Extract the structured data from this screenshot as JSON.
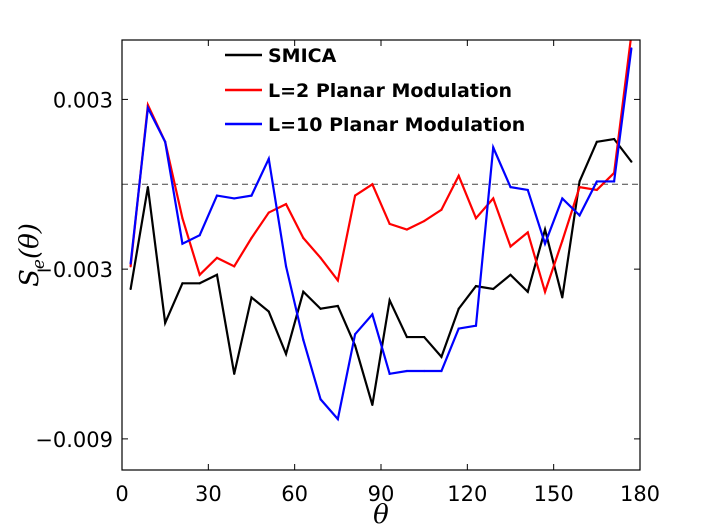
{
  "chart_data": {
    "type": "line",
    "title": "",
    "xlabel": "θ",
    "ylabel": "S_e(θ)",
    "ylabel_main": "S",
    "ylabel_sub": "e",
    "ylabel_arg": "(θ)",
    "xlim": [
      0,
      180
    ],
    "ylim": [
      -0.0101,
      0.0051
    ],
    "xticks": [
      0,
      30,
      60,
      90,
      120,
      150,
      180
    ],
    "xtick_labels": [
      "0",
      "30",
      "60",
      "90",
      "120",
      "150",
      "180"
    ],
    "yticks": [
      0.003,
      -0.003,
      -0.009
    ],
    "ytick_labels": [
      "0.003",
      "−0.003",
      "−0.009"
    ],
    "reference_line": {
      "y": 0.0,
      "style": "dashed",
      "color": "#444444"
    },
    "legend_position": "top-center",
    "x": [
      3,
      9,
      15,
      21,
      27,
      33,
      39,
      45,
      51,
      57,
      63,
      69,
      75,
      81,
      87,
      93,
      99,
      105,
      111,
      117,
      123,
      129,
      135,
      141,
      147,
      153,
      159,
      165,
      171,
      177
    ],
    "series": [
      {
        "name": "SMICA",
        "color": "#000000",
        "values": [
          -0.0037,
          -0.0001,
          -0.0049,
          -0.0035,
          -0.0035,
          -0.0032,
          -0.0067,
          -0.004,
          -0.0045,
          -0.006,
          -0.0038,
          -0.0044,
          -0.0043,
          -0.0057,
          -0.0078,
          -0.0041,
          -0.0054,
          -0.0054,
          -0.0061,
          -0.0044,
          -0.0036,
          -0.0037,
          -0.0032,
          -0.0038,
          -0.0016,
          -0.004,
          0.0001,
          0.0015,
          0.0016,
          0.0008
        ]
      },
      {
        "name": "L=2 Planar Modulation",
        "color": "#ff0000",
        "values": [
          -0.0029,
          0.0028,
          0.0015,
          -0.0012,
          -0.0032,
          -0.0026,
          -0.0029,
          -0.0019,
          -0.001,
          -0.0007,
          -0.0019,
          -0.0026,
          -0.0034,
          -0.0004,
          0.0,
          -0.0014,
          -0.0016,
          -0.0013,
          -0.0009,
          0.0003,
          -0.0012,
          -0.0005,
          -0.0022,
          -0.0017,
          -0.0038,
          -0.002,
          -0.0001,
          -0.0002,
          0.0004,
          0.0053
        ]
      },
      {
        "name": "L=10 Planar Modulation",
        "color": "#0000ff",
        "values": [
          -0.0028,
          0.0027,
          0.0015,
          -0.0021,
          -0.0018,
          -0.0004,
          -0.0005,
          -0.0004,
          0.0009,
          -0.0029,
          -0.0055,
          -0.0076,
          -0.0083,
          -0.0053,
          -0.0046,
          -0.0067,
          -0.0066,
          -0.0066,
          -0.0066,
          -0.0051,
          -0.005,
          0.0013,
          -0.0001,
          -0.0002,
          -0.0021,
          -0.0005,
          -0.0011,
          0.0001,
          0.0001,
          0.0048
        ]
      }
    ]
  }
}
